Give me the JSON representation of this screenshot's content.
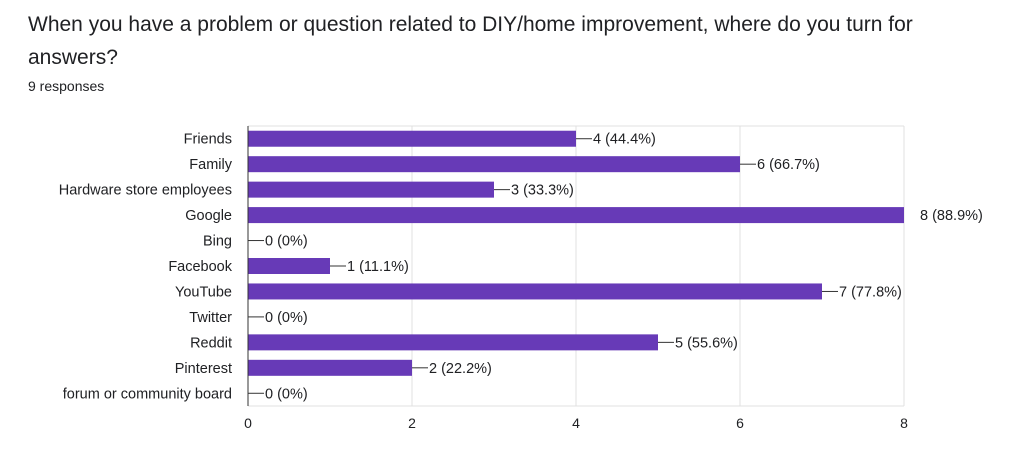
{
  "form": {
    "question": "When you have a problem or question related to DIY/home improvement, where do you turn for answers?",
    "responses_label": "9 responses"
  },
  "colors": {
    "bar": "#673ab7",
    "grid": "#e0e0e0",
    "axis": "#333333",
    "text": "#202124"
  },
  "chart_data": {
    "type": "bar",
    "orientation": "horizontal",
    "title": "",
    "xlabel": "",
    "ylabel": "",
    "categories": [
      "Friends",
      "Family",
      "Hardware store employees",
      "Google",
      "Bing",
      "Facebook",
      "YouTube",
      "Twitter",
      "Reddit",
      "Pinterest",
      "forum or community board"
    ],
    "values": [
      4,
      6,
      3,
      8,
      0,
      1,
      7,
      0,
      5,
      2,
      0
    ],
    "data_labels": [
      "4 (44.4%)",
      "6 (66.7%)",
      "3 (33.3%)",
      "8 (88.9%)",
      "0 (0%)",
      "1 (11.1%)",
      "7 (77.8%)",
      "0 (0%)",
      "5 (55.6%)",
      "2 (22.2%)",
      "0 (0%)"
    ],
    "xlim": [
      0,
      8
    ],
    "xticks": [
      0,
      2,
      4,
      6,
      8
    ],
    "grid": true,
    "legend": "none"
  }
}
